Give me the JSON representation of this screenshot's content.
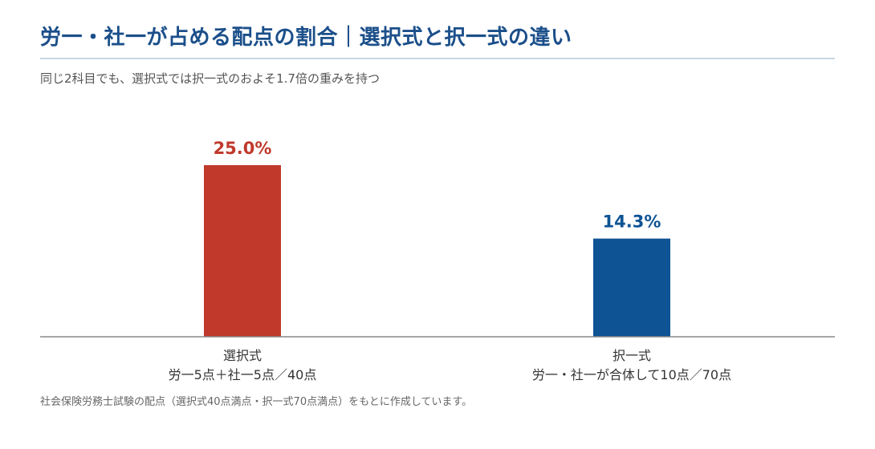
{
  "title": "労一・社一が占める配点の割合｜選択式と択一式の違い",
  "subtitle": "同じ2科目でも、選択式では択一式のおよそ1.7倍の重みを持つ",
  "note": "社会保険労務士試験の配点（選択式40点満点・択一式70点満点）をもとに作成しています。",
  "colors": {
    "title": "#1b4f8a",
    "select_bar": "#c0392b",
    "multi_bar": "#0e5394",
    "axis": "#888888"
  },
  "chart_data": {
    "type": "bar",
    "title": "",
    "xlabel": "",
    "ylabel": "",
    "ylim": [
      0,
      32
    ],
    "grid": false,
    "legend": "none",
    "categories": [
      [
        "選択式",
        "労一5点＋社一5点／40点"
      ],
      [
        "択一式",
        "労一・社一が合体して10点／70点"
      ]
    ],
    "values": [
      25.0,
      14.3
    ],
    "data_labels": [
      "25.0%",
      "14.3%"
    ],
    "colors": [
      "#c0392b",
      "#0e5394"
    ]
  }
}
